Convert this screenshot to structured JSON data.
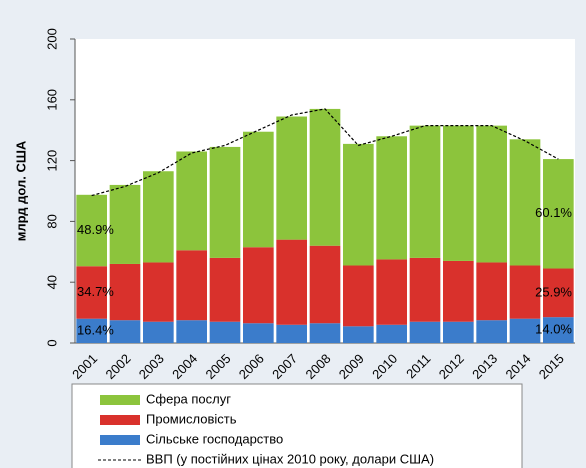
{
  "chart_data": {
    "type": "bar",
    "y_label": "млрд дол. США",
    "categories": [
      "2001",
      "2002",
      "2003",
      "2004",
      "2005",
      "2006",
      "2007",
      "2008",
      "2009",
      "2010",
      "2011",
      "2012",
      "2013",
      "2014",
      "2015"
    ],
    "series": [
      {
        "name": "Сфера послуг",
        "color": "#8cc43c",
        "values": [
          47,
          52,
          60,
          65,
          73,
          76,
          81,
          90,
          80,
          81,
          87,
          89,
          90,
          83,
          72
        ]
      },
      {
        "name": "Промисловість",
        "color": "#d9312c",
        "values": [
          34.5,
          37,
          39,
          46,
          42,
          50,
          56,
          51,
          40,
          43,
          42,
          40,
          38,
          35,
          32
        ]
      },
      {
        "name": "Сільське господарство",
        "color": "#3b7ccb",
        "values": [
          16,
          15,
          14,
          15,
          14,
          13,
          12,
          13,
          11,
          12,
          14,
          14,
          15,
          16,
          17
        ]
      },
      {
        "name": "ВВП (у постійних цінах 2010 року, долари США)",
        "type": "line",
        "color": "#000000",
        "dashed": true,
        "values": [
          97,
          103,
          112,
          125,
          130,
          140,
          150,
          154,
          130,
          136,
          143,
          143,
          143,
          133,
          121
        ]
      }
    ],
    "annotations": [
      "48.9%",
      "34.7%",
      "16.4%",
      "60.1%",
      "25.9%",
      "14.0%"
    ],
    "ylim": [
      0,
      200
    ],
    "yticks": [
      0,
      40,
      80,
      120,
      160,
      200
    ],
    "grid": false,
    "stacked": true,
    "legend": "bottom"
  }
}
